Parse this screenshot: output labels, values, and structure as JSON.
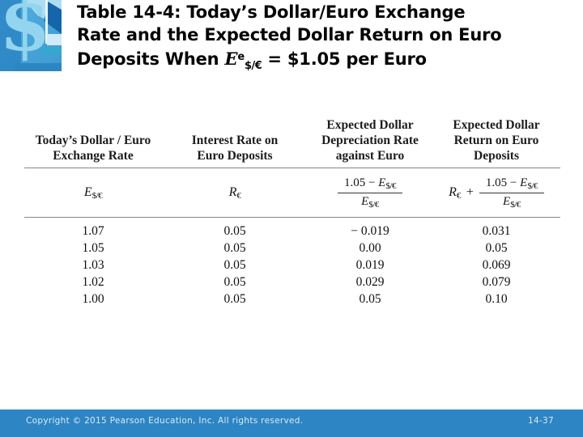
{
  "slide": {
    "logo": {
      "dollar_symbol": "$"
    },
    "title": {
      "line1": "Table 14-4: Today’s Dollar/Euro Exchange",
      "line2": "Rate and the Expected Dollar Return on Euro",
      "line3_before_math": "Deposits When ",
      "math_base": "E",
      "math_sup": "e",
      "math_sub": "$/€",
      "line3_after_math": " = $1.05 per Euro"
    },
    "table": {
      "columns": [
        {
          "lines": [
            "Today’s Dollar / Euro",
            "Exchange Rate"
          ]
        },
        {
          "lines": [
            "Interest Rate on",
            "Euro Deposits"
          ]
        },
        {
          "lines": [
            "Expected Dollar",
            "Depreciation Rate",
            "against Euro"
          ]
        },
        {
          "lines": [
            "Expected Dollar",
            "Return on Euro",
            "Deposits"
          ]
        }
      ],
      "formula_row": {
        "col1": {
          "base": "E",
          "sub": "$/€"
        },
        "col2": {
          "base": "R",
          "sub": "€"
        },
        "col3": {
          "num_pre": "1.05 − ",
          "num_base": "E",
          "num_sub": "$/€",
          "den_base": "E",
          "den_sub": "$/€"
        },
        "col4": {
          "pre_base": "R",
          "pre_sub": "€",
          "plus": "+",
          "num_pre": "1.05 − ",
          "num_base": "E",
          "num_sub": "$/€",
          "den_base": "E",
          "den_sub": "$/€"
        }
      },
      "rows": [
        [
          "1.07",
          "0.05",
          "− 0.019",
          "0.031"
        ],
        [
          "1.05",
          "0.05",
          "0.00",
          "0.05"
        ],
        [
          "1.03",
          "0.05",
          "0.019",
          "0.069"
        ],
        [
          "1.02",
          "0.05",
          "0.029",
          "0.079"
        ],
        [
          "1.00",
          "0.05",
          "0.05",
          "0.10"
        ]
      ]
    },
    "footer": {
      "copyright": "Copyright © 2015 Pearson Education, Inc. All rights reserved.",
      "page": "14-37",
      "bar_color": "#2d85c3"
    }
  }
}
